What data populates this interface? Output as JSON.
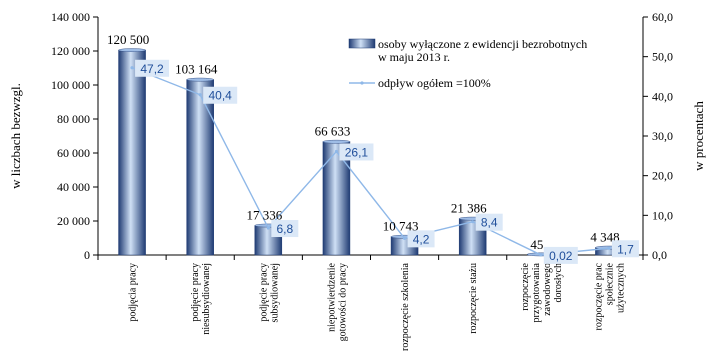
{
  "chart_data": {
    "type": "bar",
    "categories": [
      [
        "podjęcia pracy"
      ],
      [
        "podjęcie pracy",
        "niesubsydiowanej"
      ],
      [
        "podjęcie pracy",
        "subsydiowanej"
      ],
      [
        "niepotwierdzenie",
        "gotowości do pracy"
      ],
      [
        "rozpoczęcie szkolenia"
      ],
      [
        "rozpoczęcie stażu"
      ],
      [
        "rozpoczęcie",
        "przygotowania",
        "zawodowego",
        "dorosłych"
      ],
      [
        "rozpoczęcie prac",
        "społecznie",
        "użytecznych"
      ]
    ],
    "series": [
      {
        "name": "osoby wyłączone z ewidencji bezrobotnych w maju 2013 r.",
        "legend_lines": [
          "osoby wyłączone z ewidencji bezrobotnych",
          "w maju 2013 r."
        ],
        "axis": "left",
        "values": [
          120500,
          103164,
          17336,
          66633,
          10743,
          21386,
          45,
          4348
        ],
        "labels": [
          "120 500",
          "103 164",
          "17 336",
          "66 633",
          "10 743",
          "21 386",
          "45",
          "4 348"
        ]
      },
      {
        "name": "odpływ ogółem =100%",
        "legend_lines": [
          "odpływ ogółem =100%"
        ],
        "axis": "right",
        "values": [
          47.2,
          40.4,
          6.8,
          26.1,
          4.2,
          8.4,
          0.02,
          1.7
        ],
        "labels": [
          "47,2",
          "40,4",
          "6,8",
          "26,1",
          "4,2",
          "8,4",
          "0,02",
          "1,7"
        ]
      }
    ],
    "ylabel": "w liczbach bezwzgl.",
    "y2label": "w procentach",
    "ylim": [
      0,
      140000
    ],
    "y2lim": [
      0,
      60
    ],
    "yticks": [
      0,
      20000,
      40000,
      60000,
      80000,
      100000,
      120000,
      140000
    ],
    "ytick_labels": [
      "0",
      "20 000",
      "40 000",
      "60 000",
      "80 000",
      "100 000",
      "120 000",
      "140 000"
    ],
    "y2ticks": [
      0,
      10,
      20,
      30,
      40,
      50,
      60
    ],
    "y2tick_labels": [
      "0,0",
      "10,0",
      "20,0",
      "30,0",
      "40,0",
      "50,0",
      "60,0"
    ],
    "grid": false,
    "legend_position": "top-right",
    "colors": {
      "bar_dark": "#1f3b73",
      "bar_mid": "#6f95cf",
      "bar_light": "#cfe0f5",
      "line": "#8fb8e8",
      "pct_box": "#dbe8f7",
      "pct_text": "#1f4e9a"
    }
  }
}
